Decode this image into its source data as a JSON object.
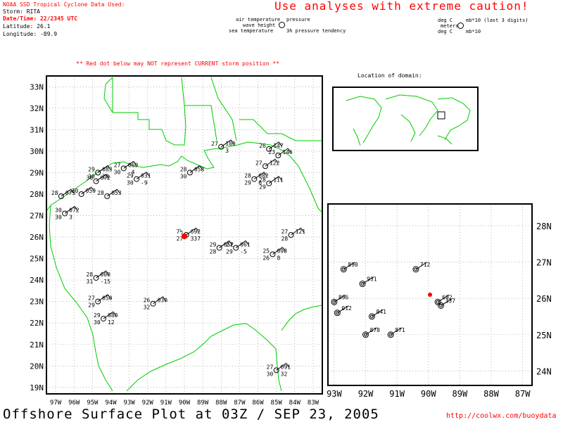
{
  "header": {
    "source": "NOAA SSD Tropical Cyclone Data Used:",
    "storm": "Storm: RITA",
    "datetime": "Date/Time: 22/2345 UTC",
    "latitude": "Latitude: 26.1",
    "longitude": "Longitude: -89.9",
    "caution": "Use analyses with extreme caution!"
  },
  "legend": {
    "air_temp": "air temperature",
    "pressure": "pressure",
    "wave_height": "wave height",
    "sea_temp": "sea temperature",
    "pressure_tendency": "3h pressure tendency",
    "deg_c_1": "deg C",
    "mb_last3": "mb*10 (last 3 digits)",
    "meters": "meters",
    "deg_c_2": "deg C",
    "mb10": "mb*10"
  },
  "warning": "** Red dot below may NOT represent CURRENT storm position **",
  "inset": {
    "title": "Location of domain:"
  },
  "main_map": {
    "lat_labels": [
      "33N",
      "32N",
      "31N",
      "30N",
      "29N",
      "28N",
      "27N",
      "26N",
      "25N",
      "24N",
      "23N",
      "22N",
      "21N",
      "20N",
      "19N"
    ],
    "lon_labels": [
      "97W",
      "96W",
      "95W",
      "94W",
      "93W",
      "92W",
      "91W",
      "90W",
      "89W",
      "88W",
      "87W",
      "86W",
      "85W",
      "84W",
      "83W"
    ],
    "stations": [
      {
        "lat": 29.0,
        "lon": -94.7,
        "t": "29",
        "p": "083",
        "s": "30",
        "d": "10"
      },
      {
        "lat": 28.6,
        "lon": -94.8,
        "t": "30",
        "p": "072",
        "s": "",
        "d": ""
      },
      {
        "lat": 29.2,
        "lon": -93.3,
        "t": "27",
        "p": "069",
        "s": "30",
        "d": "-4"
      },
      {
        "lat": 28.7,
        "lon": -92.6,
        "t": "29",
        "p": "031",
        "s": "30",
        "d": "-9"
      },
      {
        "lat": 29.0,
        "lon": -89.7,
        "t": "28",
        "p": "058",
        "s": "30",
        "d": ""
      },
      {
        "lat": 30.2,
        "lon": -88.0,
        "t": "27",
        "p": "100",
        "s": "",
        "d": "3"
      },
      {
        "lat": 30.1,
        "lon": -85.4,
        "t": "26",
        "p": "147",
        "s": "",
        "d": ""
      },
      {
        "lat": 29.8,
        "lon": -84.9,
        "t": "23",
        "p": "146",
        "s": "",
        "d": ""
      },
      {
        "lat": 29.3,
        "lon": -85.6,
        "t": "27",
        "p": "122",
        "s": "",
        "d": ""
      },
      {
        "lat": 28.7,
        "lon": -86.2,
        "t": "28",
        "p": "082",
        "s": "29",
        "d": "6"
      },
      {
        "lat": 28.5,
        "lon": -85.4,
        "t": "28",
        "p": "111",
        "s": "29",
        "d": ""
      },
      {
        "lat": 27.9,
        "lon": -96.7,
        "t": "28",
        "p": "075",
        "s": "",
        "d": ""
      },
      {
        "lat": 28.0,
        "lon": -95.6,
        "t": "30",
        "p": "059",
        "s": "",
        "d": ""
      },
      {
        "lat": 27.9,
        "lon": -94.2,
        "t": "28",
        "p": "053",
        "s": "",
        "d": ""
      },
      {
        "lat": 27.1,
        "lon": -96.5,
        "t": "30",
        "p": "072",
        "s": "30",
        "d": "3"
      },
      {
        "lat": 26.1,
        "lon": -89.9,
        "t": "7½",
        "p": "692",
        "s": "27",
        "d": "337"
      },
      {
        "lat": 25.5,
        "lon": -88.1,
        "t": "29",
        "p": "052",
        "s": "28",
        "d": ""
      },
      {
        "lat": 25.5,
        "lon": -87.2,
        "t": "27",
        "p": "061",
        "s": "29",
        "d": "-5"
      },
      {
        "lat": 25.2,
        "lon": -85.2,
        "t": "25",
        "p": "098",
        "s": "26",
        "d": "8"
      },
      {
        "lat": 24.1,
        "lon": -94.8,
        "t": "28",
        "p": "000",
        "s": "31",
        "d": "-15"
      },
      {
        "lat": 23.0,
        "lon": -94.7,
        "t": "27",
        "p": "050",
        "s": "29",
        "d": ""
      },
      {
        "lat": 22.9,
        "lon": -91.7,
        "t": "26",
        "p": "030",
        "s": "32",
        "d": ""
      },
      {
        "lat": 22.2,
        "lon": -94.4,
        "t": "29",
        "p": "080",
        "s": "30",
        "d": "12"
      },
      {
        "lat": 19.8,
        "lon": -85.0,
        "t": "27",
        "p": "091",
        "s": "30",
        "d": "32"
      },
      {
        "lat": 26.1,
        "lon": -84.2,
        "t": "27",
        "p": "121",
        "s": "28",
        "d": ""
      }
    ]
  },
  "zoom_map": {
    "lat_labels": [
      "28N",
      "27N",
      "26N",
      "25N",
      "24N"
    ],
    "lon_labels": [
      "93W",
      "92W",
      "91W",
      "90W",
      "89W",
      "88W",
      "87W"
    ],
    "stations": [
      {
        "label": "890"
      },
      {
        "label": "712"
      },
      {
        "label": "931"
      },
      {
        "label": "896"
      },
      {
        "label": "012"
      },
      {
        "label": "841"
      },
      {
        "label": "878"
      },
      {
        "label": "871"
      },
      {
        "label": "692"
      },
      {
        "label": "337"
      }
    ]
  },
  "footer": {
    "title": "Offshore Surface Plot at 03Z / SEP 23, 2005",
    "url": "http://coolwx.com/buoydata"
  },
  "colors": {
    "coast": "#00cc00",
    "storm": "#ff0000",
    "text_red": "#ff0000",
    "grid": "#888888"
  }
}
